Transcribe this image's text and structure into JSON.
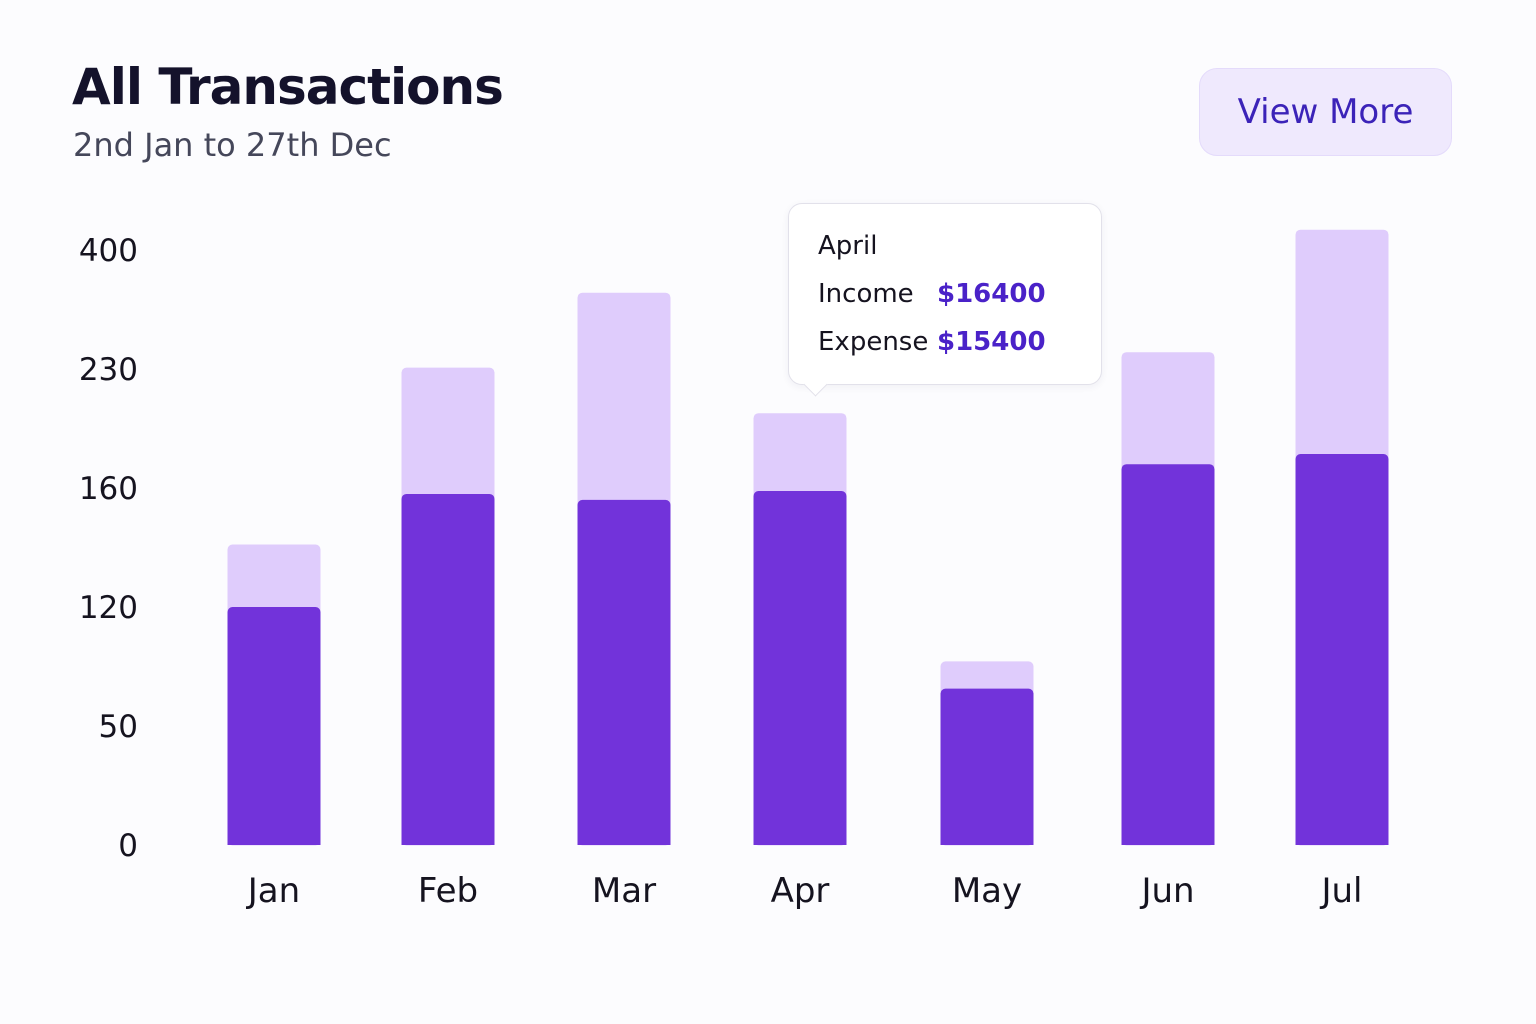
{
  "header": {
    "title": "All Transactions",
    "subtitle": "2nd Jan to 27th Dec",
    "view_more_label": "View More"
  },
  "tooltip": {
    "month": "April",
    "income_label": "Income",
    "income_value": "$16400",
    "expense_label": "Expense",
    "expense_value": "$15400"
  },
  "colors": {
    "bar_dark": "#7233da",
    "bar_light": "#dfccfc",
    "accent_text": "#4a22c8"
  },
  "chart_data": {
    "type": "bar",
    "stacked": true,
    "categories": [
      "Jan",
      "Feb",
      "Mar",
      "Apr",
      "May",
      "Jun",
      "Jul"
    ],
    "y_ticks": [
      0,
      50,
      120,
      160,
      230,
      400
    ],
    "series": [
      {
        "values": [
          120,
          158,
          156,
          159,
          72,
          174,
          180
        ]
      },
      {
        "values": [
          21,
          74,
          183,
          45,
          16,
          80,
          249
        ]
      }
    ],
    "grid": false,
    "legend": "none"
  }
}
